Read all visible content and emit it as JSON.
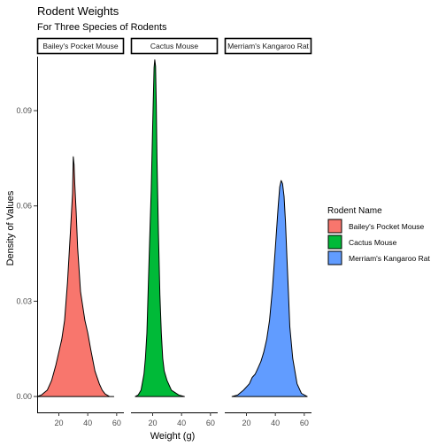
{
  "chart_data": {
    "type": "area",
    "subtype": "faceted density",
    "title": "Rodent Weights",
    "subtitle": "For Three Species of Rodents",
    "xlabel": "Weight (g)",
    "ylabel": "Density of Values",
    "xlim": [
      5,
      65
    ],
    "ylim": [
      -0.005,
      0.107
    ],
    "x_ticks": [
      20,
      40,
      60
    ],
    "y_ticks": [
      0.0,
      0.03,
      0.06,
      0.09
    ],
    "y_tick_labels": [
      "0.00",
      "0.03",
      "0.06",
      "0.09"
    ],
    "grid": false,
    "legend": {
      "title": "Rodent Name",
      "position": "right",
      "entries": [
        "Bailey's Pocket Mouse",
        "Cactus Mouse",
        "Merriam's Kangaroo Rat"
      ]
    },
    "facets": [
      {
        "label": "Bailey's Pocket Mouse",
        "color": "#F8766D",
        "points": [
          [
            5,
            0.0
          ],
          [
            8,
            0.0005
          ],
          [
            12,
            0.002
          ],
          [
            15,
            0.005
          ],
          [
            18,
            0.01
          ],
          [
            20,
            0.014
          ],
          [
            22,
            0.018
          ],
          [
            24,
            0.024
          ],
          [
            26,
            0.036
          ],
          [
            28,
            0.052
          ],
          [
            29.5,
            0.064
          ],
          [
            30,
            0.0755
          ],
          [
            30.5,
            0.073
          ],
          [
            31,
            0.067
          ],
          [
            32,
            0.058
          ],
          [
            33,
            0.047
          ],
          [
            35,
            0.033
          ],
          [
            38,
            0.024
          ],
          [
            40,
            0.02
          ],
          [
            42,
            0.015
          ],
          [
            45,
            0.008
          ],
          [
            48,
            0.004
          ],
          [
            50,
            0.002
          ],
          [
            52,
            0.0008
          ],
          [
            55,
            0.0
          ],
          [
            58,
            0.0
          ]
        ]
      },
      {
        "label": "Cactus Mouse",
        "color": "#00BA38",
        "points": [
          [
            8,
            0.0
          ],
          [
            10,
            0.0005
          ],
          [
            12,
            0.002
          ],
          [
            14,
            0.007
          ],
          [
            15,
            0.012
          ],
          [
            16,
            0.02
          ],
          [
            17,
            0.035
          ],
          [
            18,
            0.05
          ],
          [
            19,
            0.065
          ],
          [
            20,
            0.085
          ],
          [
            21,
            0.1035
          ],
          [
            21.5,
            0.106
          ],
          [
            22,
            0.104
          ],
          [
            22.5,
            0.092
          ],
          [
            23,
            0.075
          ],
          [
            24,
            0.052
          ],
          [
            25,
            0.032
          ],
          [
            26,
            0.02
          ],
          [
            27,
            0.012
          ],
          [
            28,
            0.008
          ],
          [
            30,
            0.005
          ],
          [
            33,
            0.002
          ],
          [
            38,
            0.0005
          ],
          [
            42,
            0.0
          ]
        ]
      },
      {
        "label": "Merriam's Kangaroo Rat",
        "color": "#619CFF",
        "points": [
          [
            10,
            0.0
          ],
          [
            14,
            0.0005
          ],
          [
            18,
            0.002
          ],
          [
            22,
            0.004
          ],
          [
            24,
            0.006
          ],
          [
            26,
            0.007
          ],
          [
            28,
            0.009
          ],
          [
            30,
            0.011
          ],
          [
            32,
            0.014
          ],
          [
            34,
            0.018
          ],
          [
            36,
            0.024
          ],
          [
            38,
            0.034
          ],
          [
            40,
            0.047
          ],
          [
            42,
            0.06
          ],
          [
            43,
            0.066
          ],
          [
            44,
            0.068
          ],
          [
            45,
            0.067
          ],
          [
            46,
            0.063
          ],
          [
            47,
            0.055
          ],
          [
            48,
            0.044
          ],
          [
            49,
            0.033
          ],
          [
            50,
            0.022
          ],
          [
            52,
            0.012
          ],
          [
            55,
            0.004
          ],
          [
            58,
            0.001
          ],
          [
            62,
            0.0
          ]
        ]
      }
    ]
  }
}
